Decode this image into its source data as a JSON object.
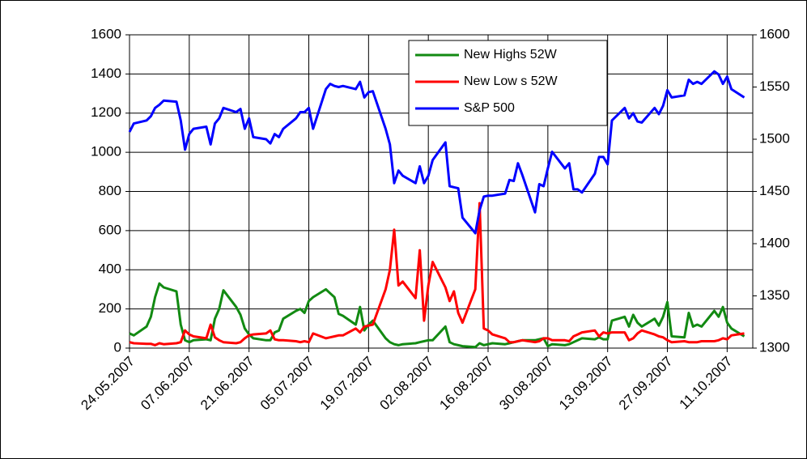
{
  "chart_data": {
    "type": "line",
    "x": [
      "24.05.2007",
      "25.05.2007",
      "28.05.2007",
      "29.05.2007",
      "30.05.2007",
      "31.05.2007",
      "01.06.2007",
      "04.06.2007",
      "05.06.2007",
      "06.06.2007",
      "07.06.2007",
      "08.06.2007",
      "11.06.2007",
      "12.06.2007",
      "13.06.2007",
      "14.06.2007",
      "15.06.2007",
      "18.06.2007",
      "19.06.2007",
      "20.06.2007",
      "21.06.2007",
      "22.06.2007",
      "25.06.2007",
      "26.06.2007",
      "27.06.2007",
      "28.06.2007",
      "29.06.2007",
      "02.07.2007",
      "03.07.2007",
      "04.07.2007",
      "05.07.2007",
      "06.07.2007",
      "09.07.2007",
      "10.07.2007",
      "11.07.2007",
      "12.07.2007",
      "13.07.2007",
      "16.07.2007",
      "17.07.2007",
      "18.07.2007",
      "19.07.2007",
      "20.07.2007",
      "23.07.2007",
      "24.07.2007",
      "25.07.2007",
      "26.07.2007",
      "27.07.2007",
      "30.07.2007",
      "31.07.2007",
      "01.08.2007",
      "02.08.2007",
      "03.08.2007",
      "06.08.2007",
      "07.08.2007",
      "08.08.2007",
      "09.08.2007",
      "10.08.2007",
      "13.08.2007",
      "14.08.2007",
      "15.08.2007",
      "16.08.2007",
      "17.08.2007",
      "20.08.2007",
      "21.08.2007",
      "22.08.2007",
      "23.08.2007",
      "24.08.2007",
      "27.08.2007",
      "28.08.2007",
      "29.08.2007",
      "30.08.2007",
      "31.08.2007",
      "03.09.2007",
      "04.09.2007",
      "05.09.2007",
      "06.09.2007",
      "07.09.2007",
      "10.09.2007",
      "11.09.2007",
      "12.09.2007",
      "13.09.2007",
      "14.09.2007",
      "17.09.2007",
      "18.09.2007",
      "19.09.2007",
      "20.09.2007",
      "21.09.2007",
      "24.09.2007",
      "25.09.2007",
      "26.09.2007",
      "27.09.2007",
      "28.09.2007",
      "01.10.2007",
      "02.10.2007",
      "03.10.2007",
      "04.10.2007",
      "05.10.2007",
      "08.10.2007",
      "09.10.2007",
      "10.10.2007",
      "11.10.2007",
      "12.10.2007",
      "15.10.2007"
    ],
    "series": [
      {
        "name": "New  Highs 52W",
        "color": "#128a12",
        "values": [
          75,
          65,
          110,
          160,
          260,
          330,
          310,
          290,
          120,
          40,
          30,
          40,
          45,
          40,
          150,
          200,
          295,
          210,
          170,
          100,
          70,
          50,
          40,
          40,
          80,
          90,
          150,
          190,
          200,
          180,
          240,
          260,
          300,
          280,
          260,
          175,
          165,
          120,
          210,
          90,
          120,
          140,
          50,
          30,
          20,
          15,
          20,
          25,
          30,
          35,
          40,
          40,
          110,
          30,
          20,
          15,
          10,
          5,
          25,
          15,
          20,
          25,
          20,
          25,
          30,
          35,
          40,
          40,
          45,
          50,
          10,
          20,
          15,
          20,
          30,
          40,
          50,
          45,
          55,
          45,
          45,
          140,
          160,
          110,
          170,
          130,
          110,
          150,
          115,
          160,
          235,
          60,
          55,
          180,
          110,
          120,
          110,
          190,
          160,
          210,
          130,
          100,
          60
        ]
      },
      {
        "name": "New  Low s 52W",
        "color": "#ff0000",
        "values": [
          30,
          25,
          22,
          22,
          15,
          25,
          20,
          25,
          30,
          90,
          70,
          60,
          50,
          120,
          55,
          40,
          30,
          25,
          30,
          50,
          65,
          70,
          75,
          90,
          45,
          40,
          40,
          35,
          30,
          35,
          30,
          75,
          50,
          55,
          60,
          65,
          65,
          100,
          80,
          110,
          115,
          120,
          300,
          400,
          605,
          320,
          340,
          255,
          500,
          140,
          320,
          440,
          310,
          240,
          290,
          180,
          130,
          300,
          740,
          100,
          90,
          70,
          50,
          30,
          30,
          35,
          40,
          30,
          35,
          50,
          50,
          40,
          40,
          35,
          60,
          70,
          80,
          90,
          60,
          80,
          75,
          80,
          80,
          40,
          50,
          75,
          90,
          70,
          60,
          55,
          40,
          30,
          35,
          30,
          30,
          30,
          35,
          35,
          40,
          50,
          45,
          65,
          75
        ]
      },
      {
        "name": "S&P 500",
        "color": "#0000ff",
        "axis": "y2",
        "values": [
          1507,
          1515,
          1518,
          1522,
          1530,
          1533,
          1537,
          1536,
          1518,
          1490,
          1505,
          1510,
          1512,
          1495,
          1515,
          1520,
          1530,
          1526,
          1529,
          1510,
          1520,
          1502,
          1500,
          1496,
          1505,
          1502,
          1510,
          1520,
          1526,
          1526,
          1530,
          1510,
          1548,
          1553,
          1551,
          1550,
          1551,
          1548,
          1555,
          1540,
          1545,
          1546,
          1510,
          1495,
          1458,
          1470,
          1465,
          1458,
          1474,
          1458,
          1465,
          1480,
          1497,
          1455,
          1454,
          1453,
          1425,
          1410,
          1432,
          1445,
          1446,
          1446,
          1448,
          1461,
          1460,
          1477,
          1466,
          1430,
          1457,
          1455,
          1472,
          1488,
          1472,
          1477,
          1452,
          1452,
          1449,
          1467,
          1483,
          1483,
          1476,
          1518,
          1530,
          1520,
          1525,
          1517,
          1516,
          1530,
          1524,
          1532,
          1547,
          1540,
          1542,
          1557,
          1553,
          1555,
          1553,
          1565,
          1562,
          1553,
          1560,
          1548,
          1540
        ]
      }
    ],
    "xlim": [
      "24.05.2007",
      "17.10.2007"
    ],
    "xticks": [
      "24.05.2007",
      "07.06.2007",
      "21.06.2007",
      "05.07.2007",
      "19.07.2007",
      "02.08.2007",
      "16.08.2007",
      "30.08.2007",
      "13.09.2007",
      "27.09.2007",
      "11.10.2007"
    ],
    "ylim": [
      0,
      1600
    ],
    "yticks": [
      0,
      200,
      400,
      600,
      800,
      1000,
      1200,
      1400,
      1600
    ],
    "y2lim": [
      1300,
      1600
    ],
    "y2ticks": [
      1300,
      1350,
      1400,
      1450,
      1500,
      1550,
      1600
    ],
    "grid": true,
    "legend": "top"
  }
}
